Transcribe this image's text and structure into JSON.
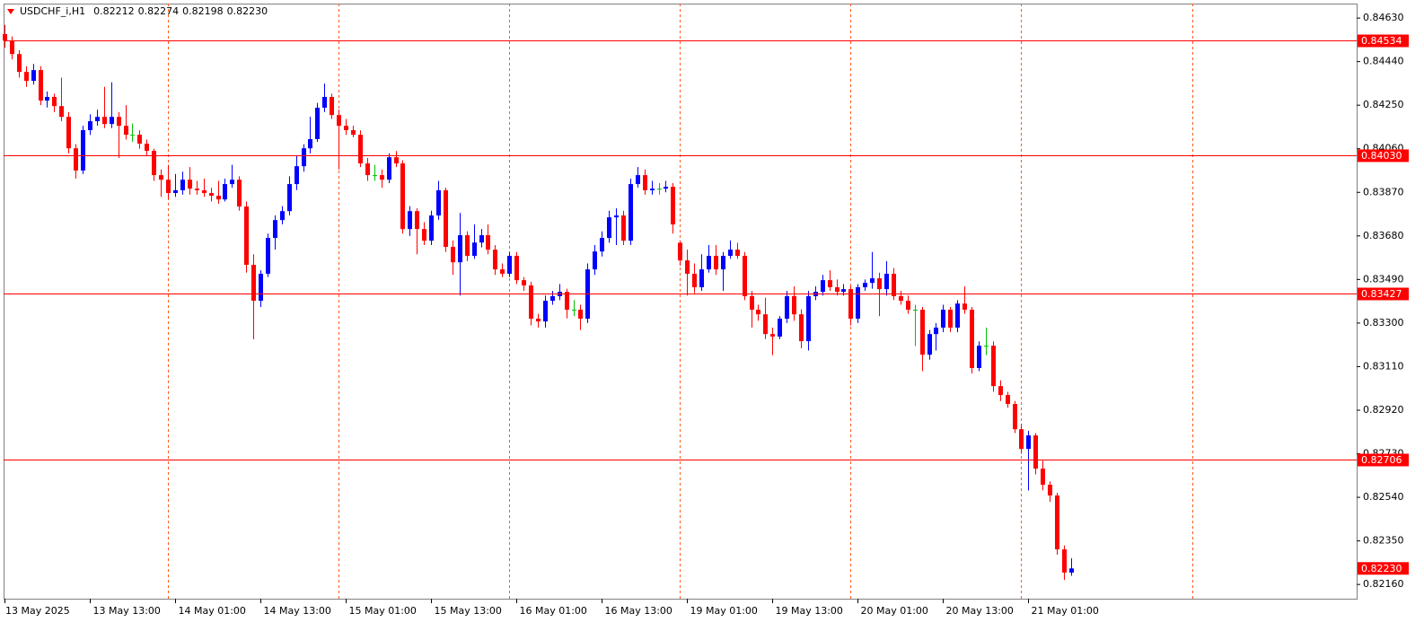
{
  "chart_data": {
    "type": "candlestick",
    "symbol": "USDCHF_i,H1",
    "last_close_label": "0.82230",
    "categories": [
      "13 May 2025",
      null,
      null,
      null,
      null,
      null,
      null,
      null,
      null,
      null,
      null,
      null,
      "13 May 13:00",
      null,
      null,
      null,
      null,
      null,
      null,
      null,
      null,
      null,
      null,
      null,
      "14 May 01:00",
      null,
      null,
      null,
      null,
      null,
      null,
      null,
      null,
      null,
      null,
      null,
      "14 May 13:00",
      null,
      null,
      null,
      null,
      null,
      null,
      null,
      null,
      null,
      null,
      null,
      "15 May 01:00",
      null,
      null,
      null,
      null,
      null,
      null,
      null,
      null,
      null,
      null,
      null,
      "15 May 13:00",
      null,
      null,
      null,
      null,
      null,
      null,
      null,
      null,
      null,
      null,
      null,
      "16 May 01:00",
      null,
      null,
      null,
      null,
      null,
      null,
      null,
      null,
      null,
      null,
      null,
      "16 May 13:00",
      null,
      null,
      null,
      null,
      null,
      null,
      null,
      null,
      null,
      null,
      null,
      "19 May 01:00",
      null,
      null,
      null,
      null,
      null,
      null,
      null,
      null,
      null,
      null,
      null,
      "19 May 13:00",
      null,
      null,
      null,
      null,
      null,
      null,
      null,
      null,
      null,
      null,
      null,
      "20 May 01:00",
      null,
      null,
      null,
      null,
      null,
      null,
      null,
      null,
      null,
      null,
      null,
      "20 May 13:00",
      null,
      null,
      null,
      null,
      null,
      null,
      null,
      null,
      null,
      null,
      null,
      "21 May 01:00",
      null,
      null,
      null,
      null,
      null,
      null
    ],
    "open": [
      0.8456,
      0.84532,
      0.84473,
      0.84395,
      0.84356,
      0.84403,
      0.8427,
      0.84286,
      0.84246,
      0.84199,
      0.84062,
      0.83965,
      0.84141,
      0.8418,
      0.84199,
      0.84168,
      0.84199,
      0.8416,
      0.84121,
      0.84121,
      0.84082,
      0.84051,
      0.83945,
      0.83925,
      0.83867,
      0.83879,
      0.83925,
      0.83886,
      0.83879,
      0.83867,
      0.83855,
      0.83839,
      0.83906,
      0.83925,
      0.83808,
      0.83554,
      0.83397,
      0.83515,
      0.83671,
      0.83749,
      0.83788,
      0.83906,
      0.83984,
      0.84062,
      0.84102,
      0.84239,
      0.84286,
      0.84207,
      0.8416,
      0.84141,
      0.84121,
      0.83996,
      0.83945,
      0.83945,
      0.83925,
      0.84023,
      0.83996,
      0.8371,
      0.83788,
      0.8371,
      0.83659,
      0.83769,
      0.83879,
      0.83632,
      0.83565,
      0.83683,
      0.83593,
      0.83651,
      0.83683,
      0.8362,
      0.83534,
      0.83515,
      0.83593,
      0.83487,
      0.83464,
      0.83319,
      0.83307,
      0.83397,
      0.83417,
      0.83436,
      0.83358,
      0.83358,
      0.83319,
      0.83534,
      0.83612,
      0.83671,
      0.83761,
      0.83769,
      0.83659,
      0.83906,
      0.83945,
      0.83879,
      0.83886,
      0.83886,
      0.83894,
      0.8365,
      0.83573,
      0.83515,
      0.83456,
      0.83534,
      0.83593,
      0.83534,
      0.83593,
      0.8362,
      0.83593,
      0.83417,
      0.83358,
      0.83338,
      0.83252,
      0.83241,
      0.83319,
      0.83417,
      0.83338,
      0.83221,
      0.83417,
      0.83436,
      0.83487,
      0.83456,
      0.83436,
      0.83448,
      0.83319,
      0.83456,
      0.83475,
      0.83495,
      0.83448,
      0.83515,
      0.83417,
      0.83397,
      0.83358,
      0.83358,
      0.83162,
      0.83252,
      0.8328,
      0.83358,
      0.8328,
      0.83385,
      0.83358,
      0.83104,
      0.83201,
      0.83201,
      0.83025,
      0.82986,
      0.82947,
      0.82837,
      0.82751,
      0.8281,
      0.82665,
      0.82595,
      0.82548,
      0.82313,
      0.82212
    ],
    "high": [
      0.846,
      0.8455,
      0.8449,
      0.8442,
      0.8443,
      0.8442,
      0.8431,
      0.843,
      0.8437,
      0.8422,
      0.8408,
      0.8416,
      0.8421,
      0.8423,
      0.8433,
      0.8435,
      0.8422,
      0.8425,
      0.8417,
      0.8414,
      0.841,
      0.8406,
      0.8397,
      0.8399,
      0.8395,
      0.8396,
      0.8398,
      0.8392,
      0.8393,
      0.8389,
      0.8392,
      0.8393,
      0.8399,
      0.8394,
      0.8383,
      0.836,
      0.8353,
      0.8369,
      0.8377,
      0.8381,
      0.8394,
      0.8403,
      0.8408,
      0.842,
      0.8426,
      0.84344,
      0.843,
      0.8423,
      0.8419,
      0.8416,
      0.8414,
      0.8402,
      0.8399,
      0.8397,
      0.8404,
      0.8405,
      0.8401,
      0.8381,
      0.838,
      0.8374,
      0.8379,
      0.8392,
      0.8389,
      0.8366,
      0.8378,
      0.837,
      0.8373,
      0.8371,
      0.8373,
      0.8364,
      0.8356,
      0.8361,
      0.8361,
      0.835,
      0.8348,
      0.8334,
      0.8342,
      0.8344,
      0.8347,
      0.8345,
      0.834,
      0.8338,
      0.8356,
      0.8364,
      0.837,
      0.8379,
      0.838,
      0.8379,
      0.8393,
      0.8398,
      0.8397,
      0.8392,
      0.8391,
      0.8392,
      0.8391,
      0.8366,
      0.8362,
      0.8356,
      0.836,
      0.8364,
      0.8364,
      0.8361,
      0.8366,
      0.8365,
      0.8361,
      0.8344,
      0.8338,
      0.8341,
      0.8328,
      0.8333,
      0.8344,
      0.8346,
      0.8336,
      0.8344,
      0.8346,
      0.8351,
      0.8353,
      0.8349,
      0.8347,
      0.8346,
      0.8347,
      0.8349,
      0.8361,
      0.8352,
      0.8357,
      0.8354,
      0.8344,
      0.8342,
      0.8338,
      0.8337,
      0.8327,
      0.833,
      0.8338,
      0.8337,
      0.834,
      0.8346,
      0.8337,
      0.8322,
      0.8328,
      0.8322,
      0.8305,
      0.83,
      0.8296,
      0.8286,
      0.8283,
      0.8282,
      0.827,
      0.8261,
      0.8256,
      0.8233,
      0.82274
    ],
    "low": [
      0.845,
      0.8445,
      0.8437,
      0.8433,
      0.8434,
      0.8425,
      0.8424,
      0.8422,
      0.8418,
      0.8404,
      0.8393,
      0.8395,
      0.8412,
      0.8416,
      0.8415,
      0.8415,
      0.8402,
      0.841,
      0.8409,
      0.8406,
      0.8403,
      0.8392,
      0.8385,
      0.8384,
      0.8385,
      0.8386,
      0.8386,
      0.8386,
      0.8385,
      0.8383,
      0.8382,
      0.8383,
      0.8389,
      0.8379,
      0.8352,
      0.83229,
      0.8337,
      0.835,
      0.8362,
      0.8373,
      0.8377,
      0.8388,
      0.8396,
      0.8404,
      0.8409,
      0.8422,
      0.8419,
      0.8397,
      0.8412,
      0.8411,
      0.8398,
      0.8392,
      0.8392,
      0.8389,
      0.8391,
      0.8398,
      0.8369,
      0.8368,
      0.836,
      0.8364,
      0.8364,
      0.8375,
      0.8361,
      0.8351,
      0.8342,
      0.8357,
      0.8358,
      0.8363,
      0.836,
      0.8351,
      0.835,
      0.835,
      0.8347,
      0.8344,
      0.8329,
      0.8328,
      0.8328,
      0.8338,
      0.834,
      0.8332,
      0.8333,
      0.8327,
      0.833,
      0.8351,
      0.8359,
      0.8365,
      0.8364,
      0.8364,
      0.8364,
      0.8389,
      0.8386,
      0.8386,
      0.8386,
      0.8387,
      0.8369,
      0.8355,
      0.8342,
      0.8343,
      0.8344,
      0.8352,
      0.8351,
      0.8344,
      0.8358,
      0.8358,
      0.834,
      0.8328,
      0.8331,
      0.8323,
      0.8316,
      0.8323,
      0.833,
      0.8331,
      0.8319,
      0.8318,
      0.834,
      0.8342,
      0.8344,
      0.8342,
      0.8342,
      0.8329,
      0.833,
      0.8344,
      0.8345,
      0.8333,
      0.8342,
      0.834,
      0.8338,
      0.8334,
      0.832,
      0.8309,
      0.8314,
      0.8318,
      0.8326,
      0.8326,
      0.8326,
      0.8334,
      0.8308,
      0.8309,
      0.8316,
      0.83,
      0.8296,
      0.8293,
      0.8282,
      0.8273,
      0.8257,
      0.8264,
      0.8257,
      0.8252,
      0.8229,
      0.8218,
      0.82198
    ],
    "close": [
      0.84532,
      0.84473,
      0.84395,
      0.84356,
      0.84403,
      0.8427,
      0.84286,
      0.84246,
      0.84199,
      0.84062,
      0.83965,
      0.84141,
      0.8418,
      0.84199,
      0.84168,
      0.84199,
      0.8416,
      0.84121,
      0.84121,
      0.84082,
      0.84051,
      0.83945,
      0.83925,
      0.83867,
      0.83879,
      0.83925,
      0.83886,
      0.83879,
      0.83867,
      0.83855,
      0.83839,
      0.83906,
      0.83925,
      0.83808,
      0.83554,
      0.83397,
      0.83515,
      0.83671,
      0.83749,
      0.83788,
      0.83906,
      0.83984,
      0.84062,
      0.84102,
      0.84239,
      0.84286,
      0.84207,
      0.8416,
      0.84141,
      0.84121,
      0.83996,
      0.83945,
      0.83945,
      0.83925,
      0.84023,
      0.83996,
      0.8371,
      0.83788,
      0.8371,
      0.83659,
      0.83769,
      0.83879,
      0.83632,
      0.83565,
      0.83683,
      0.83593,
      0.83651,
      0.83683,
      0.8362,
      0.83534,
      0.83515,
      0.83593,
      0.83487,
      0.83464,
      0.83319,
      0.83307,
      0.83397,
      0.83417,
      0.83436,
      0.83358,
      0.83358,
      0.83319,
      0.83534,
      0.83612,
      0.83671,
      0.83761,
      0.83769,
      0.83659,
      0.83906,
      0.83945,
      0.83879,
      0.83886,
      0.83886,
      0.83894,
      0.8373,
      0.83573,
      0.83515,
      0.83456,
      0.83534,
      0.83593,
      0.83534,
      0.83593,
      0.8362,
      0.83593,
      0.83417,
      0.83358,
      0.83338,
      0.83252,
      0.83241,
      0.83319,
      0.83417,
      0.83338,
      0.83221,
      0.83417,
      0.83436,
      0.83487,
      0.83456,
      0.83436,
      0.83448,
      0.83319,
      0.83456,
      0.83475,
      0.83495,
      0.83448,
      0.83515,
      0.83417,
      0.83397,
      0.83358,
      0.83358,
      0.83162,
      0.83252,
      0.8328,
      0.83358,
      0.8328,
      0.83385,
      0.83358,
      0.83104,
      0.83201,
      0.83201,
      0.83025,
      0.82986,
      0.82947,
      0.82837,
      0.82751,
      0.8281,
      0.82665,
      0.82595,
      0.82548,
      0.82313,
      0.82212,
      0.8223
    ],
    "up_color": "#0000ff",
    "down_color": "#ff0000",
    "doji_color": "#00c000",
    "ylim": [
      0.82098,
      0.84693
    ],
    "yticks": [
      {
        "value": 0.8463,
        "label": "0.84630"
      },
      {
        "value": 0.8444,
        "label": "0.84440"
      },
      {
        "value": 0.8425,
        "label": "0.84250"
      },
      {
        "value": 0.8406,
        "label": "0.84060"
      },
      {
        "value": 0.8387,
        "label": "0.83870"
      },
      {
        "value": 0.8368,
        "label": "0.83680"
      },
      {
        "value": 0.8349,
        "label": "0.83490"
      },
      {
        "value": 0.833,
        "label": "0.83300"
      },
      {
        "value": 0.8311,
        "label": "0.83110"
      },
      {
        "value": 0.8292,
        "label": "0.82920"
      },
      {
        "value": 0.8273,
        "label": "0.82730"
      },
      {
        "value": 0.8254,
        "label": "0.82540"
      },
      {
        "value": 0.8235,
        "label": "0.82350"
      },
      {
        "value": 0.8216,
        "label": "0.82160"
      }
    ],
    "levels": [
      0.84534,
      {
        "value": 0.8403,
        "label": "0.84030"
      },
      0.83427,
      0.82706
    ],
    "level_color": "#ff0000",
    "period_separators": true,
    "separator_color": "#ff5a1f"
  }
}
